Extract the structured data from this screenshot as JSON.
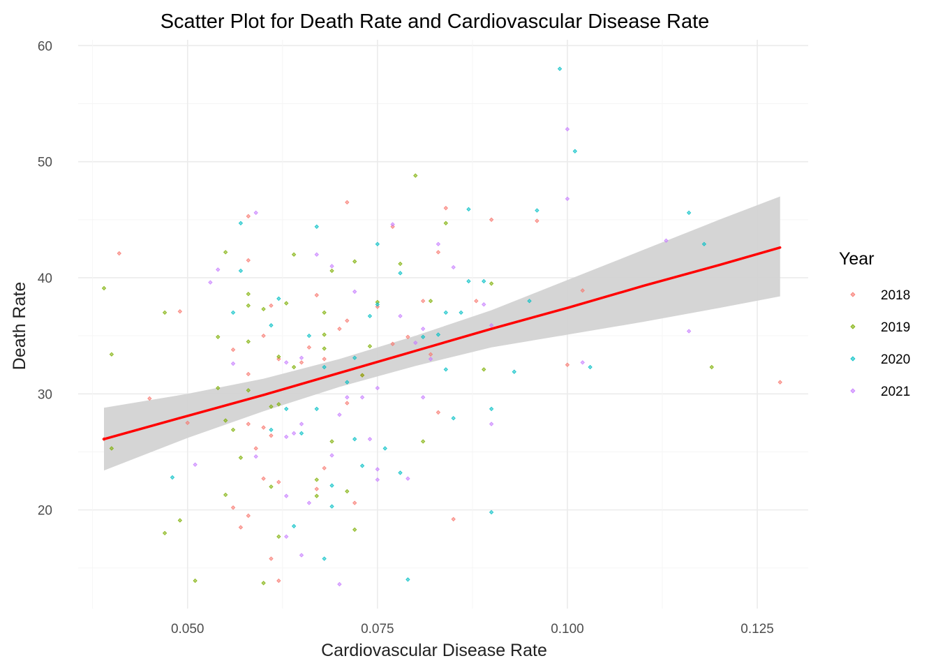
{
  "chart_data": {
    "type": "scatter",
    "title": "Scatter Plot for Death Rate and Cardiovascular Disease Rate",
    "xlabel": "Cardiovascular Disease Rate",
    "ylabel": "Death Rate",
    "xlim": [
      0.0356,
      0.1317
    ],
    "ylim": [
      11.5,
      60.5
    ],
    "x_ticks": [
      0.05,
      0.075,
      0.1,
      0.125
    ],
    "x_tick_labels": [
      "0.050",
      "0.075",
      "0.100",
      "0.125"
    ],
    "y_ticks": [
      20,
      30,
      40,
      50,
      60
    ],
    "y_tick_labels": [
      "20",
      "30",
      "40",
      "50",
      "60"
    ],
    "grid": true,
    "legend": {
      "title": "Year",
      "position": "right"
    },
    "trend": {
      "method": "linear regression",
      "color": "#ff0000",
      "ribbon_color": "#d3d3d3",
      "x": [
        0.039,
        0.05,
        0.06,
        0.07,
        0.08,
        0.09,
        0.1,
        0.11,
        0.12,
        0.128
      ],
      "y": [
        26.1,
        28.1,
        29.9,
        31.8,
        33.7,
        35.6,
        37.4,
        39.3,
        41.1,
        42.6
      ],
      "lower": [
        23.4,
        26.2,
        28.5,
        30.6,
        32.4,
        34.0,
        35.1,
        36.2,
        37.4,
        38.4
      ],
      "upper": [
        28.8,
        30.0,
        31.3,
        33.0,
        35.0,
        37.2,
        39.8,
        42.4,
        45.0,
        47.0
      ]
    },
    "series": [
      {
        "name": "2018",
        "color": "#F8766D",
        "points": [
          [
            0.039,
            26.1
          ],
          [
            0.041,
            42.1
          ],
          [
            0.045,
            29.6
          ],
          [
            0.049,
            37.1
          ],
          [
            0.05,
            27.5
          ],
          [
            0.056,
            20.2
          ],
          [
            0.056,
            33.8
          ],
          [
            0.057,
            18.5
          ],
          [
            0.058,
            45.3
          ],
          [
            0.058,
            41.5
          ],
          [
            0.058,
            31.7
          ],
          [
            0.058,
            27.4
          ],
          [
            0.058,
            19.5
          ],
          [
            0.059,
            25.3
          ],
          [
            0.06,
            35.0
          ],
          [
            0.06,
            27.1
          ],
          [
            0.06,
            22.7
          ],
          [
            0.061,
            37.6
          ],
          [
            0.061,
            15.8
          ],
          [
            0.061,
            26.4
          ],
          [
            0.062,
            33.0
          ],
          [
            0.062,
            22.4
          ],
          [
            0.062,
            13.9
          ],
          [
            0.065,
            32.7
          ],
          [
            0.066,
            34.0
          ],
          [
            0.067,
            38.5
          ],
          [
            0.067,
            21.8
          ],
          [
            0.068,
            23.6
          ],
          [
            0.068,
            33.0
          ],
          [
            0.07,
            35.6
          ],
          [
            0.071,
            46.5
          ],
          [
            0.071,
            36.3
          ],
          [
            0.071,
            29.2
          ],
          [
            0.072,
            20.6
          ],
          [
            0.073,
            31.6
          ],
          [
            0.075,
            37.5
          ],
          [
            0.077,
            44.4
          ],
          [
            0.077,
            34.3
          ],
          [
            0.079,
            34.9
          ],
          [
            0.081,
            38.0
          ],
          [
            0.082,
            33.4
          ],
          [
            0.083,
            42.2
          ],
          [
            0.083,
            28.4
          ],
          [
            0.084,
            46.0
          ],
          [
            0.085,
            19.2
          ],
          [
            0.088,
            38.0
          ],
          [
            0.09,
            45.0
          ],
          [
            0.096,
            44.9
          ],
          [
            0.1,
            32.5
          ],
          [
            0.102,
            38.9
          ],
          [
            0.128,
            31.0
          ]
        ]
      },
      {
        "name": "2019",
        "color": "#7CAE00",
        "points": [
          [
            0.039,
            39.1
          ],
          [
            0.04,
            33.4
          ],
          [
            0.04,
            25.3
          ],
          [
            0.047,
            37.0
          ],
          [
            0.047,
            18.0
          ],
          [
            0.049,
            19.1
          ],
          [
            0.051,
            13.9
          ],
          [
            0.054,
            34.9
          ],
          [
            0.054,
            30.5
          ],
          [
            0.055,
            42.2
          ],
          [
            0.055,
            27.7
          ],
          [
            0.055,
            21.3
          ],
          [
            0.056,
            26.9
          ],
          [
            0.057,
            24.5
          ],
          [
            0.058,
            38.6
          ],
          [
            0.058,
            37.6
          ],
          [
            0.058,
            34.5
          ],
          [
            0.058,
            30.3
          ],
          [
            0.06,
            37.3
          ],
          [
            0.06,
            13.7
          ],
          [
            0.061,
            28.9
          ],
          [
            0.061,
            22.0
          ],
          [
            0.062,
            33.2
          ],
          [
            0.062,
            29.1
          ],
          [
            0.062,
            17.7
          ],
          [
            0.063,
            37.8
          ],
          [
            0.064,
            42.0
          ],
          [
            0.064,
            32.3
          ],
          [
            0.067,
            22.6
          ],
          [
            0.067,
            21.2
          ],
          [
            0.068,
            37.0
          ],
          [
            0.068,
            35.1
          ],
          [
            0.068,
            33.9
          ],
          [
            0.069,
            40.6
          ],
          [
            0.069,
            25.9
          ],
          [
            0.071,
            21.6
          ],
          [
            0.072,
            41.4
          ],
          [
            0.072,
            18.3
          ],
          [
            0.073,
            31.6
          ],
          [
            0.074,
            34.1
          ],
          [
            0.075,
            37.9
          ],
          [
            0.078,
            41.2
          ],
          [
            0.08,
            48.8
          ],
          [
            0.081,
            25.9
          ],
          [
            0.082,
            38.0
          ],
          [
            0.084,
            44.7
          ],
          [
            0.089,
            32.1
          ],
          [
            0.09,
            39.5
          ],
          [
            0.119,
            32.3
          ]
        ]
      },
      {
        "name": "2020",
        "color": "#00BFC4",
        "points": [
          [
            0.048,
            22.8
          ],
          [
            0.056,
            37.0
          ],
          [
            0.057,
            44.7
          ],
          [
            0.057,
            40.6
          ],
          [
            0.061,
            35.9
          ],
          [
            0.061,
            26.9
          ],
          [
            0.062,
            38.2
          ],
          [
            0.063,
            28.7
          ],
          [
            0.064,
            18.6
          ],
          [
            0.065,
            26.6
          ],
          [
            0.066,
            35.0
          ],
          [
            0.067,
            44.4
          ],
          [
            0.067,
            28.7
          ],
          [
            0.068,
            32.3
          ],
          [
            0.068,
            15.8
          ],
          [
            0.069,
            22.1
          ],
          [
            0.069,
            20.3
          ],
          [
            0.071,
            31.0
          ],
          [
            0.072,
            33.1
          ],
          [
            0.072,
            26.1
          ],
          [
            0.073,
            23.8
          ],
          [
            0.074,
            36.7
          ],
          [
            0.075,
            42.9
          ],
          [
            0.075,
            37.7
          ],
          [
            0.076,
            25.3
          ],
          [
            0.078,
            40.4
          ],
          [
            0.078,
            23.2
          ],
          [
            0.079,
            14.0
          ],
          [
            0.081,
            34.9
          ],
          [
            0.083,
            35.1
          ],
          [
            0.084,
            37.0
          ],
          [
            0.084,
            32.1
          ],
          [
            0.085,
            27.9
          ],
          [
            0.086,
            37.0
          ],
          [
            0.087,
            45.9
          ],
          [
            0.087,
            39.7
          ],
          [
            0.089,
            39.7
          ],
          [
            0.09,
            28.7
          ],
          [
            0.09,
            19.8
          ],
          [
            0.093,
            31.9
          ],
          [
            0.095,
            38.0
          ],
          [
            0.096,
            45.8
          ],
          [
            0.099,
            58.0
          ],
          [
            0.101,
            50.9
          ],
          [
            0.103,
            32.3
          ],
          [
            0.116,
            45.6
          ],
          [
            0.118,
            42.9
          ]
        ]
      },
      {
        "name": "2021",
        "color": "#C77CFF",
        "points": [
          [
            0.051,
            23.9
          ],
          [
            0.053,
            39.6
          ],
          [
            0.054,
            40.7
          ],
          [
            0.056,
            32.6
          ],
          [
            0.059,
            45.6
          ],
          [
            0.059,
            24.6
          ],
          [
            0.063,
            32.7
          ],
          [
            0.063,
            26.3
          ],
          [
            0.063,
            21.2
          ],
          [
            0.063,
            17.7
          ],
          [
            0.064,
            26.6
          ],
          [
            0.065,
            33.1
          ],
          [
            0.065,
            27.4
          ],
          [
            0.065,
            16.1
          ],
          [
            0.066,
            20.6
          ],
          [
            0.067,
            42.0
          ],
          [
            0.069,
            41.0
          ],
          [
            0.069,
            24.7
          ],
          [
            0.07,
            28.2
          ],
          [
            0.07,
            13.6
          ],
          [
            0.071,
            29.7
          ],
          [
            0.072,
            38.8
          ],
          [
            0.073,
            29.7
          ],
          [
            0.074,
            26.1
          ],
          [
            0.075,
            30.5
          ],
          [
            0.075,
            23.5
          ],
          [
            0.075,
            22.6
          ],
          [
            0.077,
            44.6
          ],
          [
            0.078,
            36.7
          ],
          [
            0.079,
            22.7
          ],
          [
            0.08,
            34.4
          ],
          [
            0.081,
            35.6
          ],
          [
            0.081,
            29.7
          ],
          [
            0.082,
            33.0
          ],
          [
            0.083,
            42.9
          ],
          [
            0.085,
            40.9
          ],
          [
            0.089,
            37.7
          ],
          [
            0.09,
            35.9
          ],
          [
            0.09,
            27.4
          ],
          [
            0.1,
            52.8
          ],
          [
            0.1,
            46.8
          ],
          [
            0.102,
            32.7
          ],
          [
            0.113,
            43.2
          ],
          [
            0.116,
            35.4
          ]
        ]
      }
    ]
  }
}
